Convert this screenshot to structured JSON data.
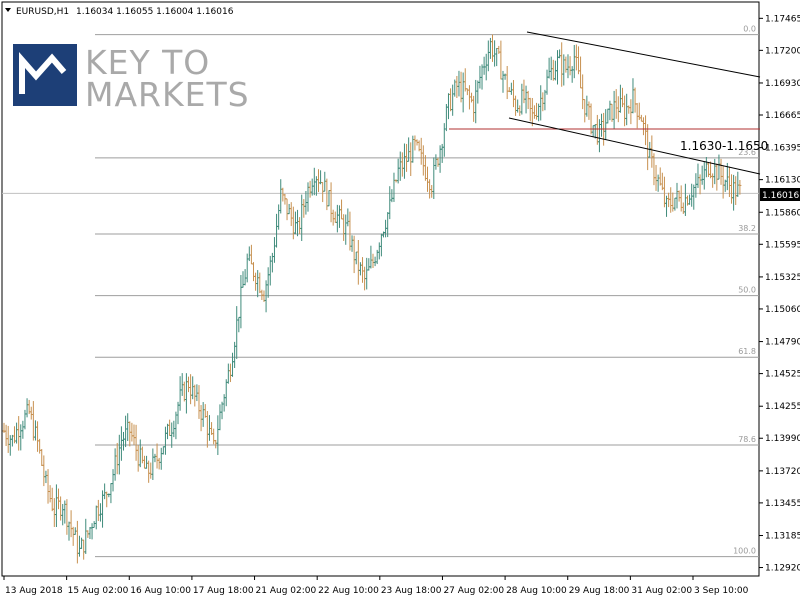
{
  "header": {
    "symbol": "EURUSD,H1",
    "quote": "1.16034 1.16055 1.16004 1.16016"
  },
  "logo": {
    "line1": "KEY TO",
    "line2": "MARKETS"
  },
  "colors": {
    "bull": "#3f8b7b",
    "bear": "#c7904f",
    "fib": "#9e9e9e",
    "resistance": "#b03030",
    "channel": "#000000",
    "logo_box": "#1d3f77",
    "price_label_bg": "#000000"
  },
  "chart_data": {
    "type": "candlestick",
    "symbol": "EURUSD",
    "timeframe": "H1",
    "ylim": [
      1.1285,
      1.176
    ],
    "yticks": [
      "1.17465",
      "1.17200",
      "1.16930",
      "1.16665",
      "1.16395",
      "1.16130",
      "1.15860",
      "1.15595",
      "1.15325",
      "1.15060",
      "1.14790",
      "1.14525",
      "1.14255",
      "1.13990",
      "1.13720",
      "1.13455",
      "1.13185",
      "1.12920"
    ],
    "current_price": "1.16016",
    "xticks": [
      "13 Aug 2018",
      "15 Aug 02:00",
      "16 Aug 10:00",
      "17 Aug 18:00",
      "21 Aug 02:00",
      "22 Aug 10:00",
      "23 Aug 18:00",
      "27 Aug 02:00",
      "28 Aug 10:00",
      "29 Aug 18:00",
      "31 Aug 02:00",
      "3 Sep 10:00"
    ],
    "fibonacci": {
      "high": 1.1733,
      "low": 1.1301,
      "levels": [
        {
          "label": "0.0",
          "ratio": 0.0
        },
        {
          "label": "23.6",
          "ratio": 0.236
        },
        {
          "label": "38.2",
          "ratio": 0.382
        },
        {
          "label": "50.0",
          "ratio": 0.5
        },
        {
          "label": "61.8",
          "ratio": 0.618
        },
        {
          "label": "78.6",
          "ratio": 0.786
        },
        {
          "label": "100.0",
          "ratio": 1.0
        }
      ]
    },
    "resistance_level": 1.1653,
    "annotation": "1.1630-1.1650",
    "series_path": [
      1.1405,
      1.1398,
      1.1412,
      1.142,
      1.1395,
      1.136,
      1.134,
      1.1345,
      1.1325,
      1.1305,
      1.132,
      1.134,
      1.135,
      1.137,
      1.1398,
      1.1405,
      1.1385,
      1.137,
      1.1378,
      1.1395,
      1.141,
      1.1432,
      1.1445,
      1.1428,
      1.1415,
      1.139,
      1.1428,
      1.146,
      1.1505,
      1.1545,
      1.1535,
      1.152,
      1.155,
      1.16,
      1.1585,
      1.157,
      1.16,
      1.162,
      1.161,
      1.159,
      1.158,
      1.157,
      1.1545,
      1.153,
      1.1545,
      1.157,
      1.159,
      1.162,
      1.163,
      1.164,
      1.1625,
      1.161,
      1.164,
      1.1675,
      1.169,
      1.1685,
      1.1675,
      1.1705,
      1.1725,
      1.171,
      1.169,
      1.1675,
      1.168,
      1.1665,
      1.168,
      1.17,
      1.171,
      1.1705,
      1.1715,
      1.168,
      1.166,
      1.165,
      1.1665,
      1.1675,
      1.167,
      1.168,
      1.1665,
      1.163,
      1.1612,
      1.159,
      1.1598,
      1.1595,
      1.1605,
      1.161,
      1.1625,
      1.162,
      1.1612,
      1.1605,
      1.1602
    ]
  }
}
